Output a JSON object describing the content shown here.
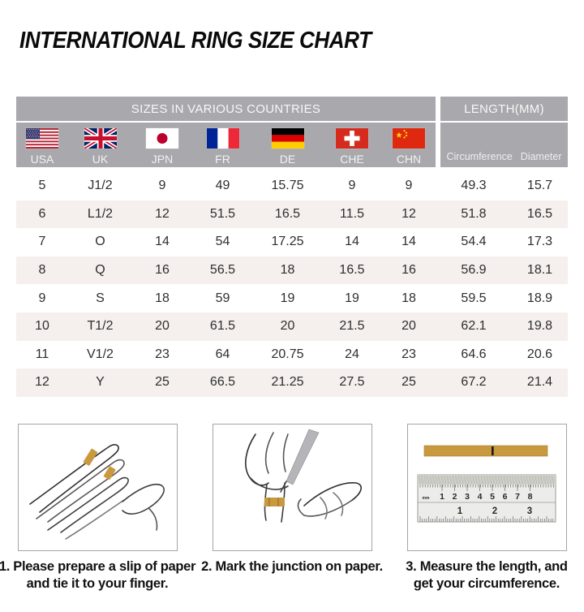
{
  "page_title": "INTERNATIONAL RING SIZE CHART",
  "table": {
    "header_sizes": "SIZES IN VARIOUS COUNTRIES",
    "header_length": "LENGTH(MM)",
    "countries": [
      "USA",
      "UK",
      "JPN",
      "FR",
      "DE",
      "CHE",
      "CHN"
    ],
    "length_columns": [
      "Circumference",
      "Diameter"
    ]
  },
  "chart_data": {
    "type": "table",
    "title": "INTERNATIONAL RING SIZE CHART",
    "column_groups": [
      "SIZES IN VARIOUS COUNTRIES",
      "LENGTH(MM)"
    ],
    "columns": [
      "USA",
      "UK",
      "JPN",
      "FR",
      "DE",
      "CHE",
      "CHN",
      "Circumference",
      "Diameter"
    ],
    "rows": [
      [
        "5",
        "J1/2",
        "9",
        "49",
        "15.75",
        "9",
        "9",
        "49.3",
        "15.7"
      ],
      [
        "6",
        "L1/2",
        "12",
        "51.5",
        "16.5",
        "11.5",
        "12",
        "51.8",
        "16.5"
      ],
      [
        "7",
        "O",
        "14",
        "54",
        "17.25",
        "14",
        "14",
        "54.4",
        "17.3"
      ],
      [
        "8",
        "Q",
        "16",
        "56.5",
        "18",
        "16.5",
        "16",
        "56.9",
        "18.1"
      ],
      [
        "9",
        "S",
        "18",
        "59",
        "19",
        "19",
        "18",
        "59.5",
        "18.9"
      ],
      [
        "10",
        "T1/2",
        "20",
        "61.5",
        "20",
        "21.5",
        "20",
        "62.1",
        "19.8"
      ],
      [
        "11",
        "V1/2",
        "23",
        "64",
        "20.75",
        "24",
        "23",
        "64.6",
        "20.6"
      ],
      [
        "12",
        "Y",
        "25",
        "66.5",
        "21.25",
        "27.5",
        "25",
        "67.2",
        "21.4"
      ]
    ]
  },
  "steps": [
    {
      "caption": "1. Please prepare a slip of paper\nand tie it to your finger."
    },
    {
      "caption": "2. Mark the junction on paper."
    },
    {
      "caption": "3. Measure the length, and\nget your circumference."
    }
  ],
  "ruler": {
    "cm_numbers": [
      "1",
      "2",
      "3",
      "4",
      "5",
      "6",
      "7",
      "8"
    ],
    "inch_numbers": [
      "1",
      "2",
      "3"
    ],
    "top_unit": "mm"
  },
  "colors": {
    "header_gray": "#a9a9ad",
    "row_alt_beige": "#f5f0ed",
    "paper_strip_gold": "#c9993f",
    "title_black": "#0a0a0a"
  }
}
